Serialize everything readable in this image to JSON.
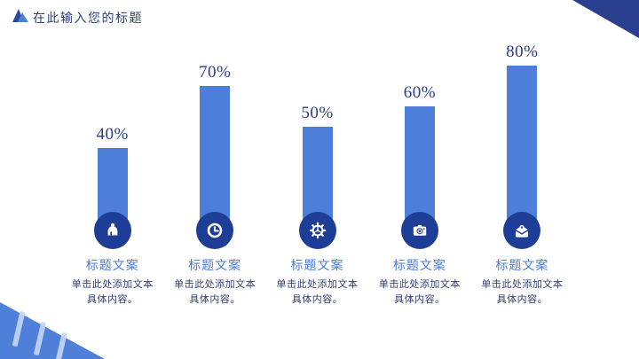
{
  "header": {
    "title": "在此输入您的标题"
  },
  "colors": {
    "bar": "#4d7ed9",
    "circle": "#1e3d96",
    "deco_dark": "#2a3f8e",
    "deco_light": "#4f80d9",
    "stripe": "#c7d6f4",
    "title_text": "#2f4080",
    "pct_text": "#2b3c88",
    "label_blue": "#4a7dd8",
    "desc_text": "#2f3e72"
  },
  "chart_data": {
    "type": "bar",
    "title": "",
    "xlabel": "",
    "ylabel": "",
    "categories": [
      "标题文案",
      "标题文案",
      "标题文案",
      "标题文案",
      "标题文案"
    ],
    "values": [
      40,
      70,
      50,
      60,
      80
    ],
    "value_labels": [
      "40%",
      "70%",
      "50%",
      "60%",
      "80%"
    ],
    "ylim": [
      0,
      100
    ],
    "grid": false,
    "legend": false,
    "icons": [
      "bell-icon",
      "clock-icon",
      "gear-icon",
      "camera-icon",
      "mail-envelope-icon"
    ]
  },
  "columns": [
    {
      "value_label": "40%",
      "title": "标题文案",
      "desc_line1": "单击此处添加文本",
      "desc_line2": "具体内容。",
      "icon": "bell-icon"
    },
    {
      "value_label": "70%",
      "title": "标题文案",
      "desc_line1": "单击此处添加文本",
      "desc_line2": "具体内容。",
      "icon": "clock-icon"
    },
    {
      "value_label": "50%",
      "title": "标题文案",
      "desc_line1": "单击此处添加文本",
      "desc_line2": "具体内容。",
      "icon": "gear-icon"
    },
    {
      "value_label": "60%",
      "title": "标题文案",
      "desc_line1": "单击此处添加文本",
      "desc_line2": "具体内容。",
      "icon": "camera-icon"
    },
    {
      "value_label": "80%",
      "title": "标题文案",
      "desc_line1": "单击此处添加文本",
      "desc_line2": "具体内容。",
      "icon": "mail-envelope-icon"
    }
  ]
}
